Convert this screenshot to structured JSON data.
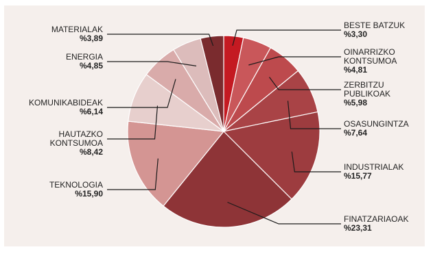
{
  "chart_data": {
    "type": "pie",
    "start_angle_deg": 0,
    "direction": "clockwise",
    "slices": [
      {
        "label": [
          "BESTE BATZUK"
        ],
        "value_text": "%3,30",
        "value": 3.3,
        "color": "#c41a22"
      },
      {
        "label": [
          "OINARRIZKO",
          "KONTSUMOA"
        ],
        "value_text": "%4,81",
        "value": 4.81,
        "color": "#c9575a"
      },
      {
        "label": [
          "ZERBITZU",
          "PUBLIKOAK"
        ],
        "value_text": "%5,98",
        "value": 5.98,
        "color": "#bd4a4d"
      },
      {
        "label": [
          "OSASUNGINTZA"
        ],
        "value_text": "%7,64",
        "value": 7.64,
        "color": "#a94346"
      },
      {
        "label": [
          "INDUSTRIALAK"
        ],
        "value_text": "%15,77",
        "value": 15.77,
        "color": "#9d3c3f"
      },
      {
        "label": [
          "FINATZARIAOAK"
        ],
        "value_text": "%23,31",
        "value": 23.31,
        "color": "#8e3437"
      },
      {
        "label": [
          "TEKNOLOGIA"
        ],
        "value_text": "%15,90",
        "value": 15.9,
        "color": "#d49593"
      },
      {
        "label": [
          "HAUTAZKO",
          "KONTSUMOA"
        ],
        "value_text": "%8,42",
        "value": 8.42,
        "color": "#e7cfcd"
      },
      {
        "label": [
          "KOMUNIKABIDEAK"
        ],
        "value_text": "%6,14",
        "value": 6.14,
        "color": "#d9abaa"
      },
      {
        "label": [
          "ENERGIA"
        ],
        "value_text": "%4,85",
        "value": 4.85,
        "color": "#dcbcbb"
      },
      {
        "label": [
          "MATERIALAK"
        ],
        "value_text": "%3,89",
        "value": 3.89,
        "color": "#7a2b2e"
      }
    ]
  }
}
